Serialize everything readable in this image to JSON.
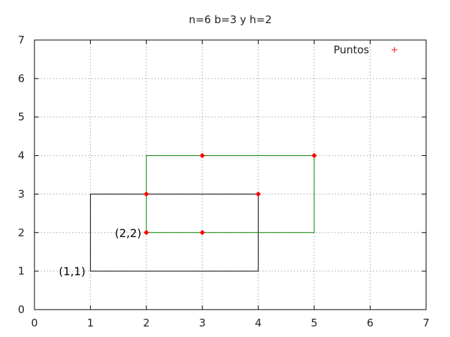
{
  "chart_data": {
    "type": "scatter",
    "title": "n=6  b=3 y h=2",
    "xlabel": "",
    "ylabel": "",
    "xlim": [
      0,
      7
    ],
    "ylim": [
      0,
      7
    ],
    "xticks": [
      "0",
      "1",
      "2",
      "3",
      "4",
      "5",
      "6",
      "7"
    ],
    "yticks": [
      "0",
      "1",
      "2",
      "3",
      "4",
      "5",
      "6",
      "7"
    ],
    "grid": true,
    "legend": {
      "position": "top-right",
      "entries": [
        "Puntos"
      ]
    },
    "series": [
      {
        "name": "Puntos",
        "color": "#ff0000",
        "marker": "diamond",
        "points": [
          [
            2,
            2
          ],
          [
            3,
            2
          ],
          [
            2,
            3
          ],
          [
            4,
            3
          ],
          [
            3,
            4
          ],
          [
            5,
            4
          ]
        ]
      }
    ],
    "rectangles": [
      {
        "color": "#000000",
        "x0": 1,
        "y0": 1,
        "x1": 4,
        "y1": 3
      },
      {
        "color": "#008000",
        "x0": 2,
        "y0": 2,
        "x1": 5,
        "y1": 4
      }
    ],
    "annotations": [
      {
        "text": "(1,1)",
        "x": 1,
        "y": 1
      },
      {
        "text": "(2,2)",
        "x": 2,
        "y": 2
      }
    ]
  }
}
